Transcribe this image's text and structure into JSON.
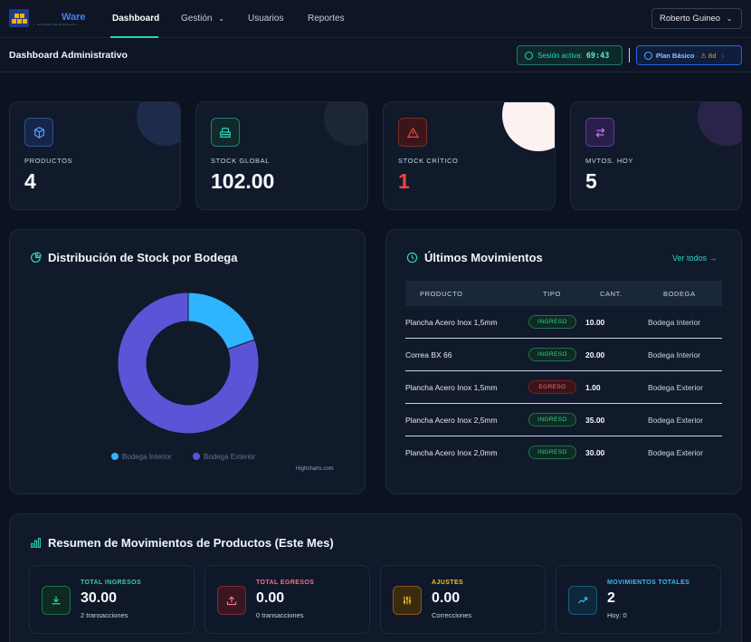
{
  "brand": {
    "name": "Ware",
    "tagline": "— SISTEMA DE BODEGAS —"
  },
  "nav": {
    "items": [
      {
        "label": "Dashboard"
      },
      {
        "label": "Gestión"
      },
      {
        "label": "Usuarios"
      },
      {
        "label": "Reportes"
      }
    ],
    "user": "Roberto Guineo"
  },
  "header": {
    "title": "Dashboard Administrativo",
    "session_label": "Sesión activa:",
    "session_timer": "69:43",
    "plan_label": "Plan Básico",
    "plan_sep": "·",
    "plan_warn": "⚠ 8d"
  },
  "stats": [
    {
      "label": "PRODUCTOS",
      "value": "4",
      "color": "#60a5fa"
    },
    {
      "label": "STOCK GLOBAL",
      "value": "102.00",
      "color": "#2dd4bf"
    },
    {
      "label": "STOCK CRÍTICO",
      "value": "1",
      "color": "#ef4444"
    },
    {
      "label": "MVTOS. HOY",
      "value": "5",
      "color": "#a78bfa"
    }
  ],
  "distribution": {
    "title": "Distribución de Stock por Bodega",
    "credits": "Highcharts.com"
  },
  "chart_data": {
    "type": "pie",
    "title": "Distribución de Stock por Bodega",
    "categories": [
      "Bodega Interior",
      "Bodega Exterior"
    ],
    "values": [
      20,
      82
    ],
    "colors": [
      "#2fb5ff",
      "#5b54d6"
    ],
    "donut": true,
    "legend": "bottom"
  },
  "movements": {
    "title": "Últimos Movimientos",
    "see_all": "Ver todos →",
    "columns": [
      "PRODUCTO",
      "TIPO",
      "CANT.",
      "BODEGA"
    ],
    "rows": [
      {
        "producto": "Plancha Acero Inox 1,5mm",
        "tipo": "INGRESO",
        "cant": "10.00",
        "bodega": "Bodega Interior"
      },
      {
        "producto": "Correa BX 66",
        "tipo": "INGRESO",
        "cant": "20.00",
        "bodega": "Bodega Interior"
      },
      {
        "producto": "Plancha Acero Inox 1,5mm",
        "tipo": "EGRESO",
        "cant": "1.00",
        "bodega": "Bodega Exterior"
      },
      {
        "producto": "Plancha Acero Inox 2,5mm",
        "tipo": "INGRESO",
        "cant": "35.00",
        "bodega": "Bodega Exterior"
      },
      {
        "producto": "Plancha Acero Inox 2,0mm",
        "tipo": "INGRESO",
        "cant": "30.00",
        "bodega": "Bodega Exterior"
      }
    ]
  },
  "summary": {
    "title": "Resumen de Movimientos de Productos (Este Mes)",
    "cards": [
      {
        "label": "TOTAL INGRESOS",
        "value": "30.00",
        "sub": "2 transacciones",
        "color": "#34d399"
      },
      {
        "label": "TOTAL EGRESOS",
        "value": "0.00",
        "sub": "0 transacciones",
        "color": "#fb7185"
      },
      {
        "label": "AJUSTES",
        "value": "0.00",
        "sub": "Correcciones",
        "color": "#fbbf24"
      },
      {
        "label": "MOVIMIENTOS TOTALES",
        "value": "2",
        "sub": "Hoy: 0",
        "color": "#38bdf8"
      }
    ]
  }
}
